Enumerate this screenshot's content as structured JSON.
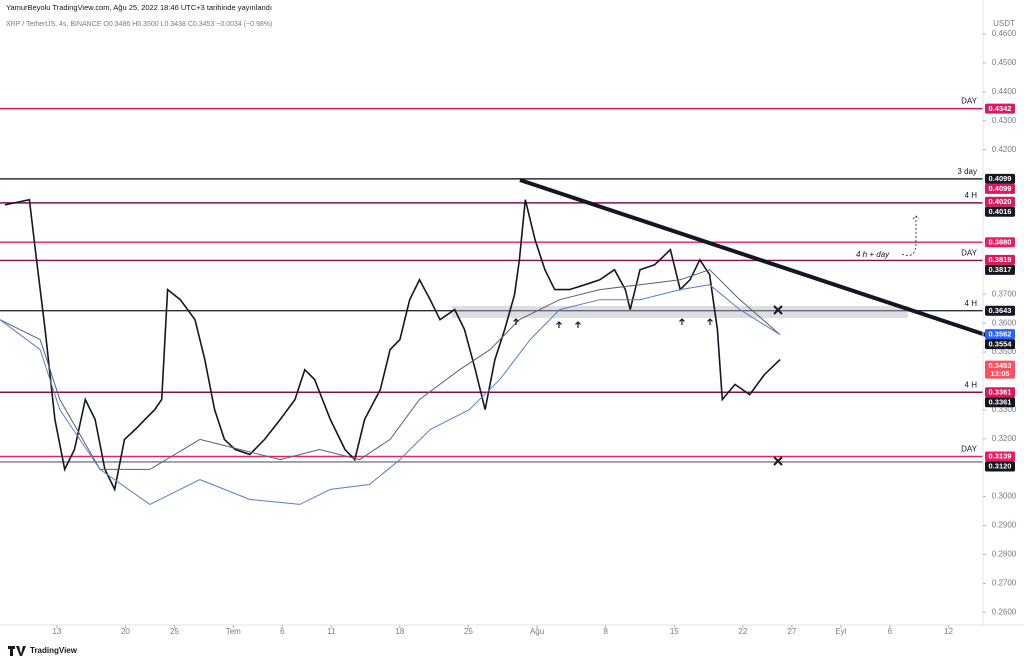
{
  "chart_data": {
    "type": "line",
    "title": "YamurBeyolu TradingView.com, Ağu 25, 2022 18:46 UTC+3 tarihinde yayınlandı",
    "subtitle": "XRP / TetherUS, 4s, BINANCE  O0.3486 H0.3500 L0.3438 C0.3453 −0.0034 (−0.98%)",
    "y_unit": "USDT",
    "footer": "TradingView",
    "annotation": "4 h + day",
    "grid": false,
    "xlim": [
      -5.8,
      94.5
    ],
    "ylim": [
      0.2556,
      0.469
    ],
    "xticks": [
      {
        "value": 0,
        "label": "13"
      },
      {
        "value": 7,
        "label": "20"
      },
      {
        "value": 12,
        "label": "25"
      },
      {
        "value": 18,
        "label": "Tem"
      },
      {
        "value": 23,
        "label": "6"
      },
      {
        "value": 28,
        "label": "11"
      },
      {
        "value": 35,
        "label": "18"
      },
      {
        "value": 42,
        "label": "25"
      },
      {
        "value": 49,
        "label": "Ağu"
      },
      {
        "value": 56,
        "label": "8"
      },
      {
        "value": 63,
        "label": "15"
      },
      {
        "value": 70,
        "label": "22"
      },
      {
        "value": 75,
        "label": "27"
      },
      {
        "value": 80,
        "label": "Eyl"
      },
      {
        "value": 85,
        "label": "6"
      },
      {
        "value": 91,
        "label": "12"
      }
    ],
    "yticks": [
      {
        "value": 0.46,
        "label": "0.4600"
      },
      {
        "value": 0.45,
        "label": "0.4500"
      },
      {
        "value": 0.44,
        "label": "0.4400"
      },
      {
        "value": 0.43,
        "label": "0.4300"
      },
      {
        "value": 0.42,
        "label": "0.4200"
      },
      {
        "value": 0.37,
        "label": "0.3700"
      },
      {
        "value": 0.36,
        "label": "0.3600"
      },
      {
        "value": 0.35,
        "label": "0.3500"
      },
      {
        "value": 0.33,
        "label": "0.3300"
      },
      {
        "value": 0.32,
        "label": "0.3200"
      },
      {
        "value": 0.3,
        "label": "0.3000"
      },
      {
        "value": 0.29,
        "label": "0.2900"
      },
      {
        "value": 0.28,
        "label": "0.2800"
      },
      {
        "value": 0.27,
        "label": "0.2700"
      },
      {
        "value": 0.26,
        "label": "0.2600"
      }
    ],
    "series": [
      {
        "color": "#131722",
        "x": [
          -5.3,
          -2.8,
          -2.2,
          -1.2,
          -0.2,
          0.8,
          1.8,
          2.9,
          3.9,
          4.9,
          5.9,
          6.9,
          8.0,
          9.0,
          10.0,
          10.7,
          11.3,
          12.6,
          14.1,
          15.1,
          16.1,
          17.1,
          18.2,
          19.7,
          21.2,
          22.8,
          24.3,
          25.3,
          26.3,
          27.9,
          29.4,
          30.4,
          31.4,
          33.0,
          34.0,
          35.0,
          36.0,
          37.0,
          38.1,
          39.1,
          40.6,
          41.6,
          42.7,
          43.7,
          44.7,
          45.7,
          46.7,
          47.2,
          47.8,
          48.8,
          49.8,
          50.8,
          52.3,
          53.9,
          55.4,
          56.9,
          58.0,
          58.5,
          59.5,
          61.0,
          62.6,
          63.6,
          64.6,
          65.6,
          66.6,
          67.4,
          67.9,
          69.2,
          70.7,
          72.2,
          73.8
        ],
        "values": [
          0.4009,
          0.4027,
          0.3854,
          0.3578,
          0.3267,
          0.3094,
          0.3163,
          0.3336,
          0.3267,
          0.3094,
          0.3025,
          0.3198,
          0.3232,
          0.3267,
          0.3301,
          0.3336,
          0.3716,
          0.3681,
          0.3612,
          0.3474,
          0.3301,
          0.3198,
          0.3163,
          0.3146,
          0.3198,
          0.3267,
          0.3336,
          0.3439,
          0.3405,
          0.3267,
          0.3163,
          0.3128,
          0.3267,
          0.337,
          0.3508,
          0.3543,
          0.3681,
          0.375,
          0.3681,
          0.3612,
          0.3647,
          0.3578,
          0.3439,
          0.3301,
          0.3474,
          0.3578,
          0.3698,
          0.3819,
          0.4027,
          0.3888,
          0.3785,
          0.3716,
          0.3716,
          0.3733,
          0.375,
          0.3785,
          0.3716,
          0.3647,
          0.3785,
          0.3802,
          0.3854,
          0.3716,
          0.375,
          0.3819,
          0.3768,
          0.3578,
          0.3336,
          0.3388,
          0.3353,
          0.3422,
          0.3474
        ]
      },
      {
        "color": "#5d606b",
        "x": [
          -5.8,
          -1.7,
          0.3,
          4.4,
          9.5,
          14.6,
          18.7,
          22.8,
          26.8,
          30.9,
          34.0,
          37.0,
          41.1,
          44.2,
          47.2,
          51.3,
          55.4,
          59.5,
          63.6,
          66.6,
          69.7,
          73.8
        ],
        "values": [
          0.3612,
          0.3543,
          0.3336,
          0.3094,
          0.3094,
          0.3198,
          0.3163,
          0.3128,
          0.3163,
          0.3128,
          0.3198,
          0.3336,
          0.3439,
          0.3508,
          0.3612,
          0.3681,
          0.3716,
          0.3733,
          0.375,
          0.3785,
          0.3681,
          0.356
        ]
      },
      {
        "color": "#5b7fc7",
        "x": [
          -5.8,
          -1.7,
          0.3,
          4.4,
          9.5,
          14.6,
          19.7,
          24.8,
          27.9,
          31.9,
          35.0,
          38.1,
          42.1,
          45.2,
          48.3,
          51.3,
          55.4,
          59.5,
          63.6,
          66.6,
          69.7,
          73.8
        ],
        "values": [
          0.3612,
          0.3508,
          0.3301,
          0.3094,
          0.2973,
          0.3059,
          0.299,
          0.2973,
          0.3025,
          0.3042,
          0.3128,
          0.3232,
          0.3301,
          0.3405,
          0.3543,
          0.3647,
          0.3681,
          0.3681,
          0.3716,
          0.3733,
          0.3647,
          0.356
        ]
      }
    ],
    "levels": [
      {
        "value": 0.4342,
        "color": "#d81b60",
        "tag": "DAY"
      },
      {
        "value": 0.4099,
        "color": "#2a2e39",
        "tag": "3 day"
      },
      {
        "value": 0.4016,
        "color": "#880e4f",
        "tag": "4 H"
      },
      {
        "value": 0.388,
        "color": "#e91e63"
      },
      {
        "value": 0.3817,
        "color": "#880e4f",
        "tag": "DAY"
      },
      {
        "value": 0.3643,
        "color": "#2a2e39",
        "tag": "4 H"
      },
      {
        "value": 0.3361,
        "color": "#880e4f",
        "tag": "4 H"
      },
      {
        "value": 0.3139,
        "color": "#e91e63",
        "tag": "DAY"
      },
      {
        "value": 0.312,
        "color": "#787b86"
      }
    ],
    "price_tags": [
      {
        "value": 0.4342,
        "label": "0.4342",
        "color": "#d81b60"
      },
      {
        "value": 0.4099,
        "label": "0.4099",
        "color": "#131722"
      },
      {
        "value": 0.4099,
        "label": "0.4099",
        "color": "#d81b60"
      },
      {
        "value": 0.402,
        "label": "0.4020",
        "color": "#d81b60"
      },
      {
        "value": 0.4016,
        "label": "0.4016",
        "color": "#131722"
      },
      {
        "value": 0.388,
        "label": "0.3880",
        "color": "#e91e63"
      },
      {
        "value": 0.3819,
        "label": "0.3819",
        "color": "#d81b60"
      },
      {
        "value": 0.3817,
        "label": "0.3817",
        "color": "#131722"
      },
      {
        "value": 0.3643,
        "label": "0.3643",
        "color": "#131722"
      },
      {
        "value": 0.3562,
        "label": "0.3562",
        "color": "#2962ff"
      },
      {
        "value": 0.3554,
        "label": "0.3554",
        "color": "#131722"
      },
      {
        "value": 0.3453,
        "label": "0.3453",
        "sub": "13:05",
        "color": "#f7525f"
      },
      {
        "value": 0.3361,
        "label": "0.3361",
        "color": "#d81b60"
      },
      {
        "value": 0.3361,
        "label": "0.3361",
        "color": "#131722"
      },
      {
        "value": 0.3139,
        "label": "0.3139",
        "color": "#e91e63"
      },
      {
        "value": 0.312,
        "label": "0.3120",
        "color": "#131722"
      }
    ]
  }
}
